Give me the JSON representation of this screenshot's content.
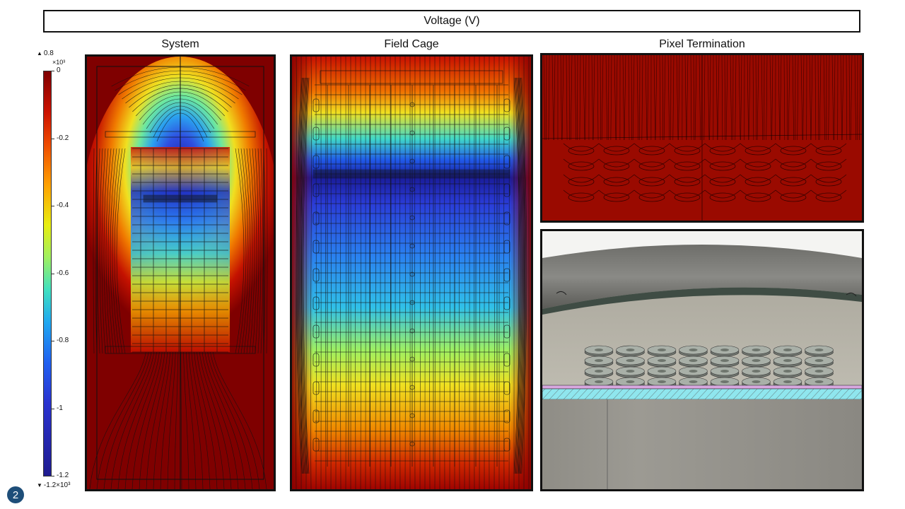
{
  "header": {
    "title": "Voltage (V)"
  },
  "panels": {
    "system": {
      "label": "System"
    },
    "field_cage": {
      "label": "Field Cage"
    },
    "pixel_termination": {
      "label": "Pixel Termination"
    }
  },
  "colorbar": {
    "max_label": "0.8",
    "max_exponent": "×10³",
    "min_label": "-1.2×10³",
    "ticks": [
      "0",
      "-0.2",
      "-0.4",
      "-0.6",
      "-0.8",
      "-1",
      "-1.2"
    ],
    "up_marker": "▲",
    "down_marker": "▼"
  },
  "slide": {
    "number": "2"
  }
}
